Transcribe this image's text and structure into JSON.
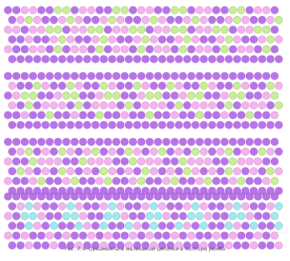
{
  "caption": "Рис. 7.4. Орнаменты в маленькой цепочке в полтора ромба",
  "colors": {
    "background": "#ffffff",
    "bead_violet": "#b873e8",
    "bead_violet_stroke": "#9a55cc",
    "bead_pink": "#f3b4ee",
    "bead_pink_stroke": "#d689d0",
    "bead_green": "#c9ee96",
    "bead_green_stroke": "#9dc46a",
    "bead_cyan": "#9fe9ef",
    "bead_cyan_stroke": "#6cc4cc",
    "watermark": "#d9d9d9"
  },
  "panels": [
    {
      "name": "pattern-panel-1",
      "rows": [
        "vvppvvggvppvvggvppvvggvppvvggvppv",
        "vpgpvvpgpvvpgpvvpgpvvpgpvvpgpvvpg",
        "ppvppggvppggvppggvppggvppggvppggv",
        "vvpvvpgpvvpgpvvpgpvvpgpvvpgpvvpgp",
        "pvvppvgvppvgvppvgvppvgvppvgvppvgv",
        "vvvvvvvvvvvvvvvvvvvvvvvvvvvvvvvvv"
      ]
    },
    {
      "name": "pattern-panel-2",
      "rows": [
        "vvvvvvvvvvvvvvvvvvvvvvvvvvvvvvvvv",
        "pvvgpvvgpvvgpvvgpvvgpvvgpvvgpvvgp",
        "vpggvvpggvvpggvvpggvvpggvvpggvvpg",
        "pvgvpppvgvpppvgvpppvgvpppvgvpppvg",
        "vvpvvgvvpvvgvvpvvgvvpvvgvvpvvgvvp",
        "vvvvvvvvvvvvvvvvvvvvvvvvvvvvvvvvv"
      ]
    },
    {
      "name": "pattern-panel-3",
      "rows": [
        "vvvvvvvvvvvvvvvvvvvvvvvvvvvvvvvvv",
        "vpgvpvgpvpgvpvgpvpgvpvgpvpgvpvgpv",
        "pvvgpppvvgpppvvgpppvvgpppvvgpppvv",
        "vgpvpvgpvpvgpvpvgpvpvgpvpvgpvpvgp",
        "pvvpgvvpgvvpgvvpgvvpgvvpgvvpgvvpg",
        "vvvvvvvvvvvvvvvvvvvvvvvvvvvvvvvvv"
      ]
    },
    {
      "name": "pattern-panel-4",
      "rows": [
        "vvvvvvvvvvvvvvvvvvvvvvvvvvvvvvvvv",
        "vpcpvvpcpvvpcpvvpcpvvpcpvvpcpvvpc",
        "pvccpvvccpvvccpvvccpvvccpvvccpvvc",
        "vvcpvcvvcpvcvvcpvcvvcpvcvvcpvcvvc",
        "pvpvvpvpvvpvpvvpvpvvpvpvvpvpvvpvp",
        "vvpvvpvvpvvpvvpvvpvvpvvpvvpvvpvvp"
      ]
    }
  ]
}
